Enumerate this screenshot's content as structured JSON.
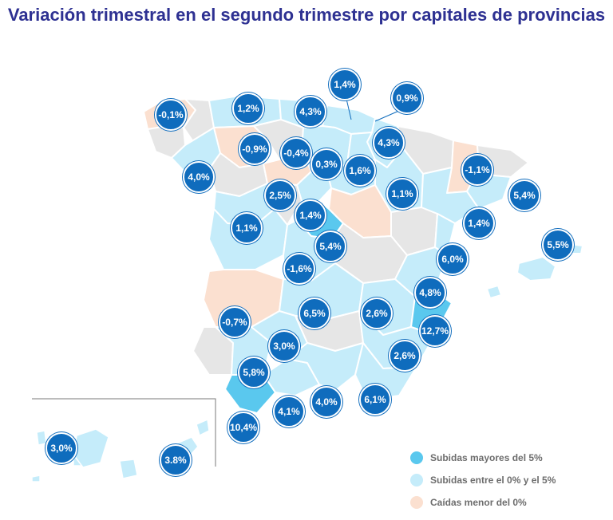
{
  "title": "Variación trimestral en el segundo trimestre por capitales de provincias",
  "colors": {
    "high": "#5ac8ee",
    "mid": "#c5ecfa",
    "low": "#fbe0d0",
    "nodata": "#e6e6e6",
    "badge": "#0f6cbd",
    "title": "#2e3192"
  },
  "legend": [
    {
      "label": "Subidas mayores del 5%",
      "color": "#5ac8ee"
    },
    {
      "label": "Subidas entre el 0% y el 5%",
      "color": "#c5ecfa"
    },
    {
      "label": "Caídas menor del 0%",
      "color": "#fbe0d0"
    }
  ],
  "badges": [
    {
      "value": "-0,1%"
    },
    {
      "value": "1,2%"
    },
    {
      "value": "4,3%"
    },
    {
      "value": "1,4%"
    },
    {
      "value": "0,9%"
    },
    {
      "value": "-0,9%"
    },
    {
      "value": "-0,4%"
    },
    {
      "value": "0,3%"
    },
    {
      "value": "4,3%"
    },
    {
      "value": "4,0%"
    },
    {
      "value": "1,6%"
    },
    {
      "value": "-1,1%"
    },
    {
      "value": "2,5%"
    },
    {
      "value": "1,1%"
    },
    {
      "value": "5,4%"
    },
    {
      "value": "1,4%"
    },
    {
      "value": "1,4%"
    },
    {
      "value": "1,1%"
    },
    {
      "value": "5,5%"
    },
    {
      "value": "5,4%"
    },
    {
      "value": "6,0%"
    },
    {
      "value": "-1,6%"
    },
    {
      "value": "4,8%"
    },
    {
      "value": "-0,7%"
    },
    {
      "value": "6,5%"
    },
    {
      "value": "2,6%"
    },
    {
      "value": "12,7%"
    },
    {
      "value": "3,0%"
    },
    {
      "value": "2,6%"
    },
    {
      "value": "5,8%"
    },
    {
      "value": "4,0%"
    },
    {
      "value": "6,1%"
    },
    {
      "value": "4,1%"
    },
    {
      "value": "10,4%"
    },
    {
      "value": "3,0%"
    },
    {
      "value": "3.8%"
    }
  ]
}
